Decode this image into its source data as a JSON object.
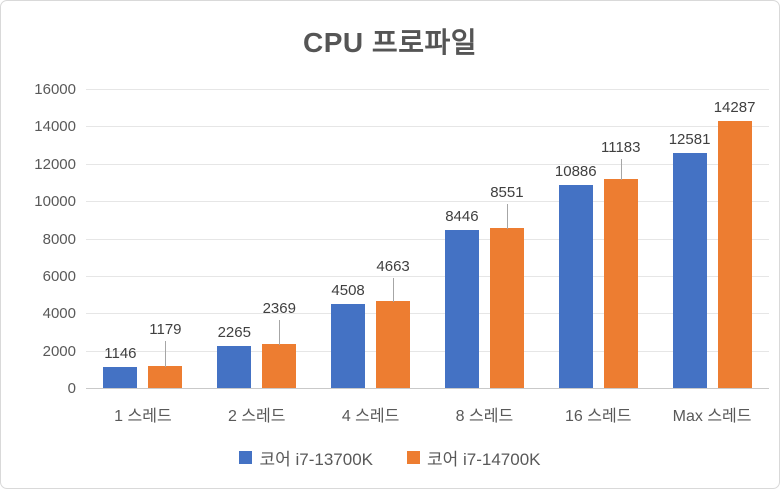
{
  "chart_data": {
    "type": "bar",
    "title": "CPU 프로파일",
    "xlabel": "",
    "ylabel": "",
    "categories": [
      "1 스레드",
      "2 스레드",
      "4 스레드",
      "8 스레드",
      "16 스레드",
      "Max 스레드"
    ],
    "series": [
      {
        "name": "코어 i7-13700K",
        "color": "#4472C4",
        "values": [
          1146,
          2265,
          4508,
          8446,
          10886,
          12581
        ]
      },
      {
        "name": "코어 i7-14700K",
        "color": "#ED7D31",
        "values": [
          1179,
          2369,
          4663,
          8551,
          11183,
          14287
        ]
      }
    ],
    "ylim": [
      0,
      16000
    ],
    "yticks": [
      0,
      2000,
      4000,
      6000,
      8000,
      10000,
      12000,
      14000,
      16000
    ],
    "grid": true,
    "legend_position": "bottom",
    "data_labels": "outside-end"
  },
  "style": {
    "title_color": "#555555",
    "axis_text_color": "#595959",
    "data_label_color": "#404040",
    "gridline_color": "#e6e6e6",
    "axis_line_color": "#c9c9c9",
    "leader_line_color": "#a6a6a6",
    "frame_border_color": "#d9d9d9",
    "background": "#ffffff"
  }
}
